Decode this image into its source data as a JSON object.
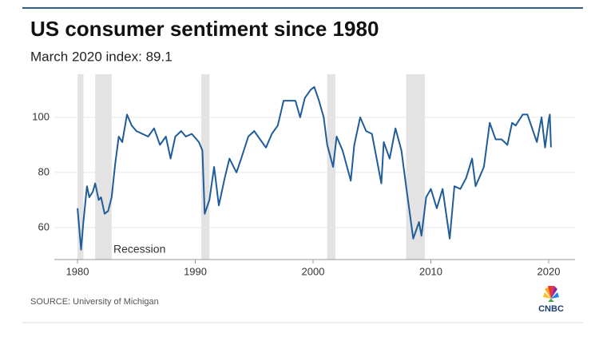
{
  "chart_data": {
    "type": "line",
    "title": "US consumer sentiment since 1980",
    "subtitle": "March 2020 index: 89.1",
    "source": "SOURCE: University of Michigan",
    "logo": "CNBC",
    "annotation": "Recession",
    "xlim": [
      1978.03,
      2022.24
    ],
    "xticks": [
      1980,
      1990,
      2000,
      2010,
      2020
    ],
    "ylim": [
      48.4,
      115.6
    ],
    "yticks": [
      60,
      80,
      100
    ],
    "grid": true,
    "recessions": [
      [
        1980.0,
        1980.5
      ],
      [
        1981.5,
        1982.9
      ],
      [
        1990.5,
        1991.2
      ],
      [
        2001.2,
        2001.9
      ],
      [
        2007.9,
        2009.5
      ]
    ],
    "recession_color": "#e3e3e3",
    "series": [
      {
        "color": "#1f5c99",
        "x": [
          1980.0,
          1980.3,
          1980.5,
          1980.8,
          1981.0,
          1981.3,
          1981.5,
          1981.8,
          1982.0,
          1982.3,
          1982.6,
          1982.9,
          1983.2,
          1983.5,
          1983.8,
          1984.2,
          1984.6,
          1985.0,
          1985.5,
          1986.0,
          1986.5,
          1987.0,
          1987.5,
          1987.9,
          1988.3,
          1988.8,
          1989.2,
          1989.7,
          1990.3,
          1990.6,
          1990.8,
          1991.2,
          1991.6,
          1992.0,
          1992.5,
          1992.9,
          1993.5,
          1993.9,
          1994.5,
          1995.0,
          1995.5,
          1996.0,
          1996.5,
          1997.0,
          1997.5,
          1998.0,
          1998.5,
          1998.9,
          1999.3,
          1999.8,
          2000.1,
          2000.5,
          2000.9,
          2001.2,
          2001.7,
          2002.0,
          2002.5,
          2003.2,
          2003.5,
          2004.0,
          2004.5,
          2005.0,
          2005.8,
          2006.0,
          2006.5,
          2007.0,
          2007.5,
          2007.9,
          2008.5,
          2009.0,
          2009.2,
          2009.6,
          2010.0,
          2010.5,
          2011.0,
          2011.6,
          2012.0,
          2012.5,
          2013.0,
          2013.5,
          2013.8,
          2014.5,
          2015.0,
          2015.5,
          2016.0,
          2016.5,
          2016.9,
          2017.2,
          2017.8,
          2018.2,
          2018.6,
          2019.0,
          2019.4,
          2019.7,
          2020.0,
          2020.1,
          2020.2
        ],
        "values": [
          67,
          52,
          62,
          75,
          71,
          73,
          76,
          70,
          71,
          65,
          66,
          71,
          83,
          93,
          91,
          101,
          97,
          95,
          94,
          93,
          96,
          90,
          93,
          85,
          93,
          95,
          93,
          94,
          91,
          88,
          65,
          70,
          82,
          68,
          78,
          85,
          80,
          85,
          93,
          95,
          92,
          89,
          94,
          97,
          106,
          106,
          106,
          100,
          107,
          110,
          111,
          106,
          100,
          90,
          82,
          93,
          88,
          77,
          90,
          100,
          95,
          94,
          76,
          91,
          85,
          96,
          88,
          75,
          56,
          62,
          57,
          71,
          74,
          67,
          74,
          56,
          75,
          74,
          78,
          85,
          75,
          82,
          98,
          92,
          92,
          90,
          98,
          97,
          101,
          101,
          96,
          91,
          100,
          89,
          99,
          101,
          89.1
        ]
      }
    ]
  }
}
